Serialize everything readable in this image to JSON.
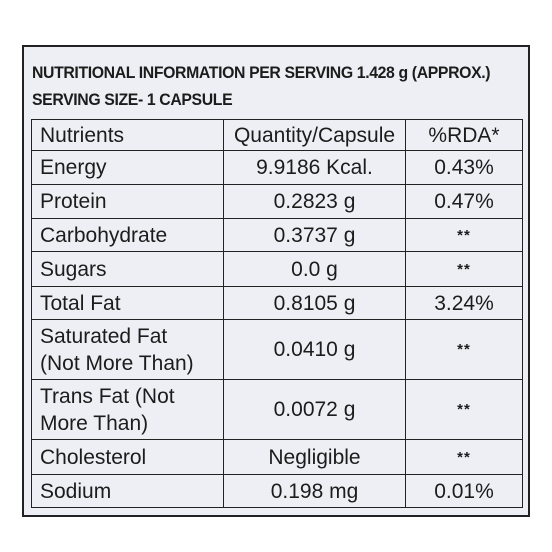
{
  "header": {
    "line1": "NUTRITIONAL INFORMATION PER SERVING 1.428 g (APPROX.)",
    "line2": "SERVING SIZE- 1 CAPSULE"
  },
  "table": {
    "columns": [
      "Nutrients",
      "Quantity/Capsule",
      "%RDA*"
    ],
    "rows": [
      {
        "nutrient": [
          "Energy"
        ],
        "quantity": "9.9186 Kcal.",
        "rda": "0.43%"
      },
      {
        "nutrient": [
          "Protein"
        ],
        "quantity": "0.2823 g",
        "rda": "0.47%"
      },
      {
        "nutrient": [
          "Carbohydrate"
        ],
        "quantity": "0.3737 g",
        "rda": "**"
      },
      {
        "nutrient": [
          "Sugars"
        ],
        "quantity": "0.0 g",
        "rda": "**"
      },
      {
        "nutrient": [
          "Total Fat"
        ],
        "quantity": "0.8105 g",
        "rda": "3.24%"
      },
      {
        "nutrient": [
          "Saturated Fat",
          "(Not More Than)"
        ],
        "quantity": "0.0410 g",
        "rda": "**"
      },
      {
        "nutrient": [
          "Trans Fat (Not",
          "More Than)"
        ],
        "quantity": "0.0072 g",
        "rda": "**"
      },
      {
        "nutrient": [
          "Cholesterol"
        ],
        "quantity": "Negligible",
        "rda": "**"
      },
      {
        "nutrient": [
          "Sodium"
        ],
        "quantity": "0.198 mg",
        "rda": "0.01%"
      }
    ]
  }
}
